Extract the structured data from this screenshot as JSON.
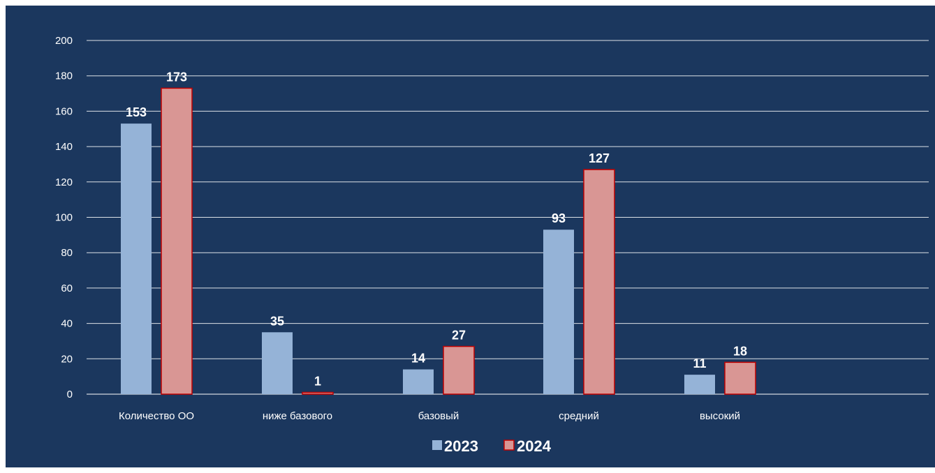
{
  "chart_data": {
    "type": "bar",
    "categories": [
      "Количество ОО",
      "ниже базового",
      "базовый",
      "средний",
      "высокий"
    ],
    "series": [
      {
        "name": "2023",
        "values": [
          153,
          35,
          14,
          93,
          11
        ],
        "color": "#95b3d7"
      },
      {
        "name": "2024",
        "values": [
          173,
          1,
          27,
          127,
          18
        ],
        "color": "#d99694",
        "border": "#c00000"
      }
    ],
    "ylim": [
      0,
      200
    ],
    "yticks": [
      0,
      20,
      40,
      60,
      80,
      100,
      120,
      140,
      160,
      180,
      200
    ],
    "grid": true,
    "legend_position": "bottom",
    "background": "#1b375e",
    "text_color": "#ffffff",
    "grid_color": "#ffffff"
  }
}
